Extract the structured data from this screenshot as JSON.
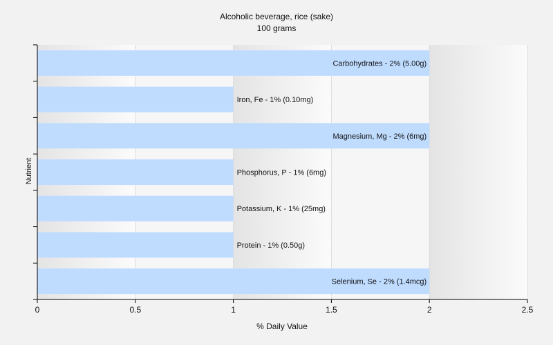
{
  "chart_data": {
    "type": "bar",
    "orientation": "horizontal",
    "title": "Alcoholic beverage, rice (sake)",
    "subtitle": "100 grams",
    "xlabel": "% Daily Value",
    "ylabel": "Nutrient",
    "xlim": [
      0,
      2.5
    ],
    "xticks": [
      "0",
      "0.5",
      "1",
      "1.5",
      "2",
      "2.5"
    ],
    "grid": true,
    "bar_color": "#bfdcff",
    "categories": [
      "Carbohydrates - 2% (5.00g)",
      "Iron, Fe - 1% (0.10mg)",
      "Magnesium, Mg - 2% (6mg)",
      "Phosphorus, P - 1% (6mg)",
      "Potassium, K - 1% (25mg)",
      "Protein - 1% (0.50g)",
      "Selenium, Se - 2% (1.4mcg)"
    ],
    "values": [
      2,
      1,
      2,
      1,
      1,
      1,
      2
    ]
  }
}
